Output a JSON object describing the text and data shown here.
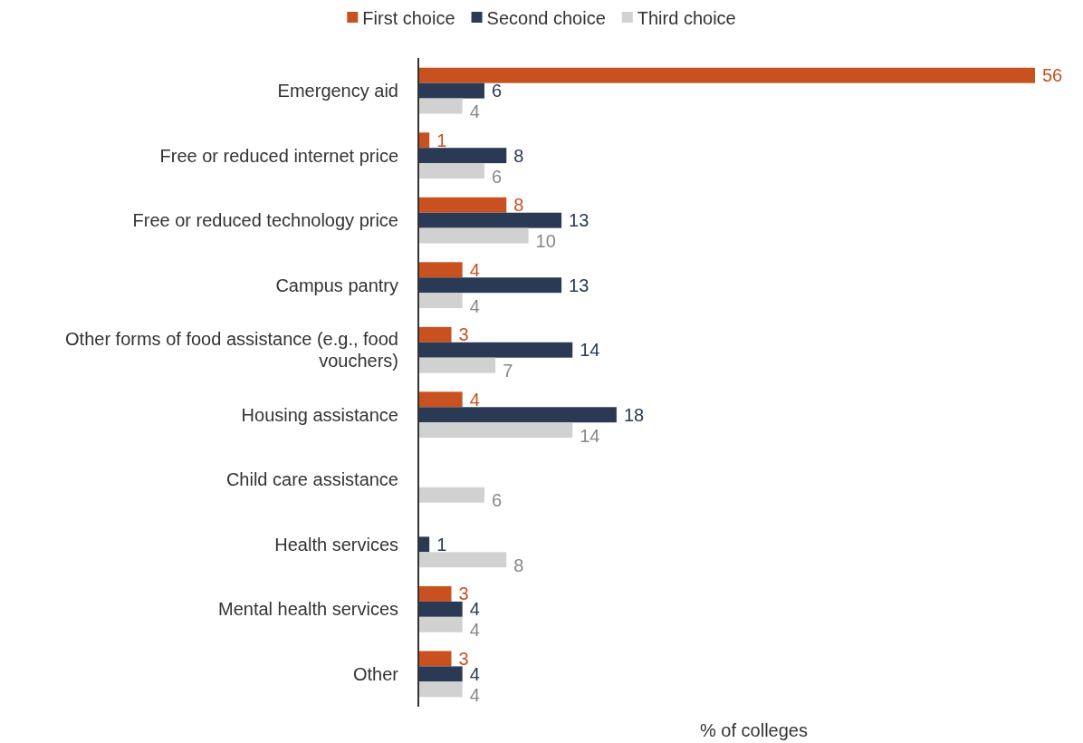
{
  "chart_data": {
    "type": "bar",
    "orientation": "horizontal",
    "xlabel": "% of colleges",
    "legend": "top",
    "data_labels": true,
    "tick_labels": "y",
    "xlim": [
      0,
      56
    ],
    "categories": [
      "Emergency aid",
      "Free or reduced internet price",
      "Free or reduced technology price",
      "Campus pantry",
      "Other forms of food assistance (e.g., food vouchers)",
      "Housing assistance",
      "Child care assistance",
      "Health services",
      "Mental health services",
      "Other"
    ],
    "series": [
      {
        "name": "First choice",
        "color": "#c9511f",
        "values": [
          56,
          1,
          8,
          4,
          3,
          4,
          null,
          null,
          3,
          3
        ]
      },
      {
        "name": "Second choice",
        "color": "#2a3a55",
        "values": [
          6,
          8,
          13,
          13,
          14,
          18,
          null,
          1,
          4,
          4
        ]
      },
      {
        "name": "Third choice",
        "color": "#d1d1d1",
        "values": [
          4,
          6,
          10,
          4,
          7,
          14,
          6,
          8,
          4,
          4
        ]
      }
    ]
  }
}
